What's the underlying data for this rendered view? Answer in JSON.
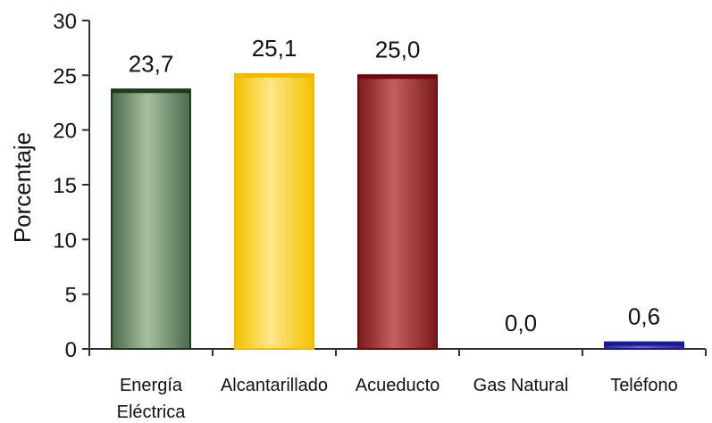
{
  "chart_data": {
    "type": "bar",
    "title": "",
    "xlabel": "",
    "ylabel": "Porcentaje",
    "ylim": [
      0,
      30
    ],
    "yticks": [
      0,
      5,
      10,
      15,
      20,
      25,
      30
    ],
    "grid": false,
    "legend": "none",
    "categories": [
      [
        "Energía",
        "Eléctrica"
      ],
      [
        "Alcantarillado"
      ],
      [
        "Acueducto"
      ],
      [
        "Gas Natural"
      ],
      [
        "Teléfono"
      ]
    ],
    "values": [
      23.7,
      25.1,
      25.0,
      0.0,
      0.6
    ],
    "data_labels": [
      "23,7",
      "25,1",
      "25,0",
      "0,0",
      "0,6"
    ],
    "colors": [
      {
        "edge": "#1f3a1f",
        "dark": "#4a6a4a",
        "light": "#a8c0a0"
      },
      {
        "edge": "#f2b900",
        "dark": "#f2c200",
        "light": "#ffe68a"
      },
      {
        "edge": "#6e0a0a",
        "dark": "#7a1a1a",
        "light": "#c06060"
      },
      {
        "edge": "#888888",
        "dark": "#aaaaaa",
        "light": "#dddddd"
      },
      {
        "edge": "#1c1c90",
        "dark": "#2a2aa0",
        "light": "#6a6ad8"
      }
    ]
  }
}
